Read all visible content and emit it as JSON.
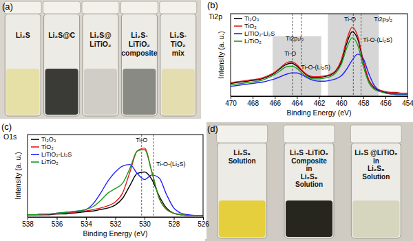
{
  "chart_data": [
    {
      "type": "line",
      "label": "(b)",
      "title": "Ti2p",
      "x_label": "Binding Energy (eV)",
      "y_label": "Intensity (a. u.)",
      "x": [
        470,
        469.5,
        469,
        468.5,
        468,
        467.5,
        467,
        466.5,
        466,
        465.5,
        465,
        464.5,
        464,
        463.5,
        463,
        462.5,
        462,
        461.5,
        461,
        460.5,
        460,
        459.5,
        459,
        458.5,
        458,
        457.5,
        457,
        456.5,
        456,
        455.5,
        455,
        454.5,
        454
      ],
      "series": [
        {
          "name": "Ti₂O₃",
          "color": "#000000",
          "values": [
            17,
            18,
            19,
            20,
            21,
            22,
            24,
            27,
            31,
            37,
            42,
            44,
            40,
            33,
            27,
            25,
            25,
            26,
            28,
            33,
            45,
            70,
            86,
            76,
            46,
            21,
            11,
            7,
            5,
            4,
            4,
            3,
            3
          ]
        },
        {
          "name": "TiO₂",
          "color": "#e31a1c",
          "values": [
            18,
            19,
            20,
            21,
            22,
            23,
            25,
            28,
            32,
            38,
            44,
            46,
            42,
            34,
            28,
            26,
            26,
            27,
            29,
            34,
            48,
            75,
            92,
            80,
            48,
            22,
            12,
            8,
            6,
            5,
            5,
            4,
            4
          ]
        },
        {
          "name": "LiTiO₂-Li₂S",
          "color": "#1f1fff",
          "values": [
            13,
            14,
            15,
            16,
            17,
            18,
            19,
            21,
            23,
            26,
            29,
            31,
            31,
            28,
            24,
            21,
            20,
            20,
            21,
            23,
            27,
            36,
            48,
            56,
            50,
            30,
            14,
            7,
            4,
            3,
            2,
            2,
            2
          ]
        },
        {
          "name": "LiTiO₂",
          "color": "#1a9a1a",
          "values": [
            15,
            16,
            17,
            18,
            19,
            20,
            22,
            25,
            29,
            34,
            39,
            40,
            37,
            30,
            25,
            23,
            23,
            24,
            26,
            31,
            42,
            64,
            78,
            68,
            40,
            18,
            9,
            6,
            4,
            3,
            3,
            3,
            3
          ]
        }
      ],
      "xlim": [
        470,
        454
      ],
      "xticks": [
        470,
        468,
        466,
        464,
        462,
        460,
        458,
        456,
        454
      ],
      "ylim": [
        0,
        110
      ],
      "tick_labels": "x",
      "grid": false,
      "legend": "upper left",
      "shaded_regions": [
        {
          "x": [
            466.2,
            461.8
          ],
          "y": [
            0,
            80
          ]
        },
        {
          "x": [
            461.2,
            456.6
          ],
          "y": [
            0,
            110
          ]
        }
      ],
      "peak_lines": [
        464.4,
        463.6,
        458.9,
        458.2
      ],
      "annotations": [
        {
          "text": "Ti2p₁/₂",
          "x": 464.2,
          "y": 74
        },
        {
          "text": "Ti-O",
          "x": 464.6,
          "y": 54
        },
        {
          "text": "Ti-O-(Li₂S)",
          "x": 462.3,
          "y": 36
        },
        {
          "text": "Ti-O",
          "x": 459.2,
          "y": 100
        },
        {
          "text": "Ti2p₃/₂",
          "x": 456.2,
          "y": 100
        },
        {
          "text": "Ti-O-(Li₂S)",
          "x": 456.7,
          "y": 72
        }
      ]
    },
    {
      "type": "line",
      "label": "(c)",
      "title": "O1s",
      "x_label": "Binding Energy (eV)",
      "y_label": "Intensity (a. u.)",
      "x": [
        538,
        537.5,
        537,
        536.5,
        536,
        535.5,
        535,
        534.5,
        534,
        533.5,
        533,
        532.5,
        532,
        531.5,
        531,
        530.5,
        530,
        529.5,
        529,
        528.5,
        528,
        527.5,
        527,
        526.5,
        526
      ],
      "series": [
        {
          "name": "Ti₂O₃",
          "color": "#000000",
          "values": [
            3,
            3,
            3,
            3,
            4,
            4,
            5,
            6,
            7,
            8,
            10,
            12,
            16,
            25,
            42,
            58,
            60,
            50,
            28,
            12,
            5,
            3,
            2,
            2,
            2
          ]
        },
        {
          "name": "TiO₂",
          "color": "#e31a1c",
          "values": [
            3,
            3,
            3,
            4,
            4,
            5,
            6,
            7,
            8,
            10,
            12,
            15,
            20,
            32,
            60,
            88,
            92,
            60,
            25,
            10,
            5,
            3,
            2,
            2,
            2
          ]
        },
        {
          "name": "LiTiO₂-Li₂S",
          "color": "#1f1fff",
          "values": [
            3,
            3,
            4,
            4,
            5,
            6,
            7,
            8,
            10,
            18,
            32,
            48,
            60,
            68,
            70,
            58,
            50,
            56,
            52,
            30,
            12,
            5,
            3,
            2,
            2
          ]
        },
        {
          "name": "LiTiO₂",
          "color": "#1a9a1a",
          "values": [
            3,
            3,
            4,
            4,
            5,
            6,
            7,
            8,
            10,
            14,
            22,
            32,
            38,
            45,
            65,
            88,
            90,
            60,
            25,
            10,
            5,
            3,
            2,
            2,
            2
          ]
        }
      ],
      "xlim": [
        538,
        526
      ],
      "xticks": [
        538,
        536,
        534,
        532,
        530,
        528,
        526
      ],
      "ylim": [
        0,
        110
      ],
      "tick_labels": "x",
      "grid": false,
      "legend": "upper left",
      "peak_lines": [
        530.2,
        529.4
      ],
      "annotations": [
        {
          "text": "Ti-O",
          "x": 530.2,
          "y": 100
        },
        {
          "text": "Ti-O-(Li₂S)",
          "x": 528.2,
          "y": 68
        }
      ]
    }
  ],
  "photos": {
    "a": {
      "label": "(a)",
      "items": [
        {
          "label": [
            "Li₂S"
          ],
          "color": "#e6e0a6"
        },
        {
          "label": [
            "Li₂S@C"
          ],
          "color": "#3a3a36"
        },
        {
          "label": [
            "Li₂S@",
            "LiTiO₂"
          ],
          "color": "#cfcdc6"
        },
        {
          "label": [
            "Li₂S-",
            "LiTiO₂",
            "composite"
          ],
          "color": "#8a8a84"
        },
        {
          "label": [
            "Li₂S-",
            "TiO₂",
            "mix"
          ],
          "color": "#e4ddb0"
        }
      ]
    },
    "d": {
      "label": "(d)",
      "items": [
        {
          "label": [
            "Li₂S₈",
            "Solution"
          ],
          "color": "#e6cf3c"
        },
        {
          "label": [
            "Li₂S -LiTiO₂",
            "Composite",
            "in",
            "Li₂S₈",
            "Solution"
          ],
          "color": "#26261f"
        },
        {
          "label": [
            "Li₂S @LiTiO₂",
            "in",
            "Li₂S₈",
            "Solution"
          ],
          "color": "#d6d5bd"
        }
      ]
    }
  }
}
